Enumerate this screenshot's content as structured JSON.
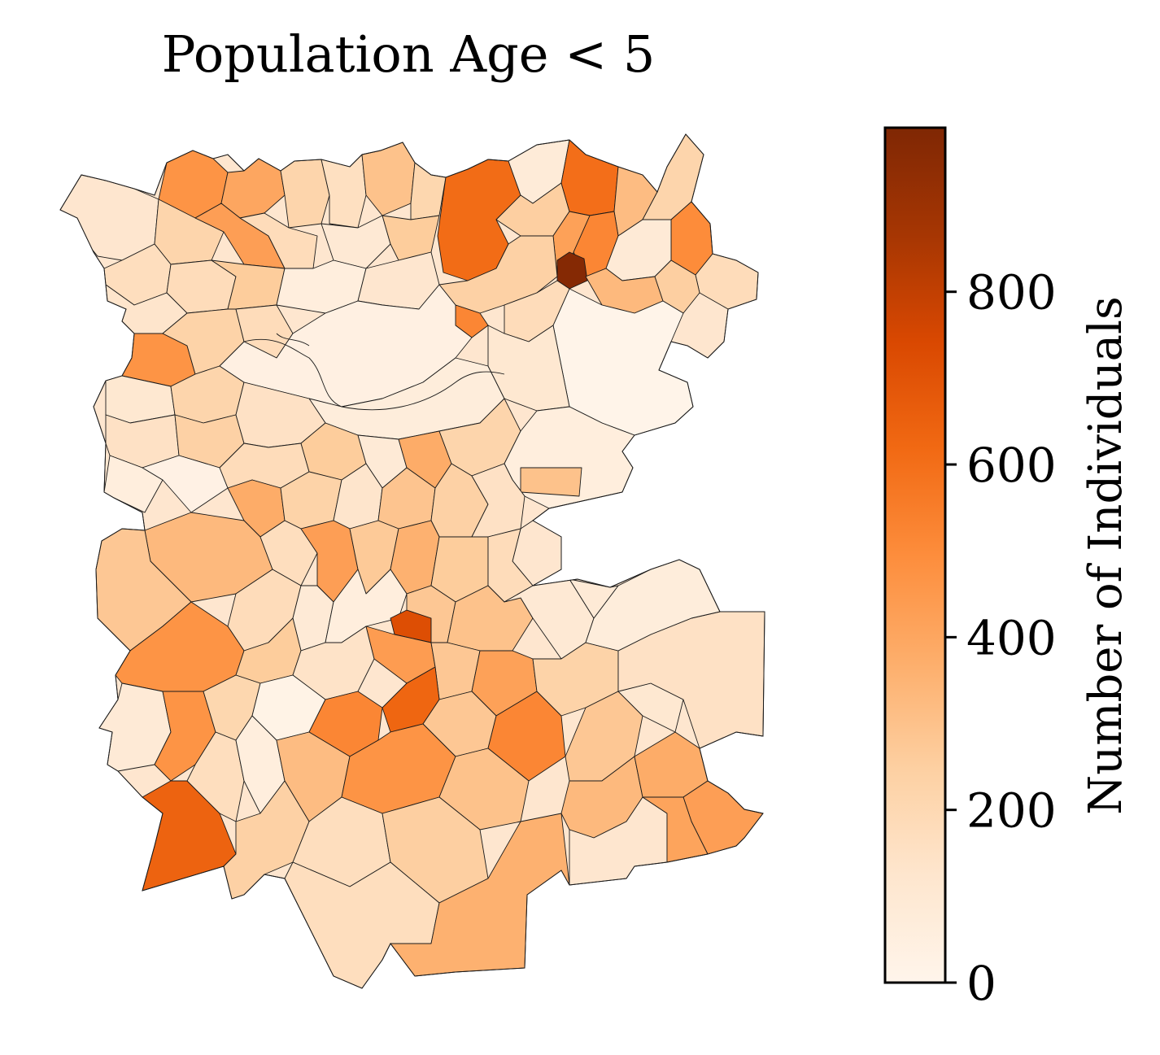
{
  "title": "Population Age < 5",
  "colorbar": {
    "label": "Number of Individuals",
    "min": 0,
    "max": 990,
    "ticks": [
      0,
      200,
      400,
      600,
      800
    ],
    "tick_labels": [
      "0",
      "200",
      "400",
      "600",
      "800"
    ],
    "colormap": "Oranges",
    "stops": [
      "#fff5eb",
      "#fee6ce",
      "#fdd0a2",
      "#fdae6b",
      "#fd8d3c",
      "#f16913",
      "#d94801",
      "#a63603",
      "#7f2704"
    ]
  },
  "map_data": {
    "type": "choropleth",
    "variable": "Population Age < 5",
    "units": "Number of Individuals",
    "notable_regions": [
      {
        "description": "highest value, north-east area",
        "value": 970
      },
      {
        "description": "south-west area",
        "value": 640
      },
      {
        "description": "north, large area",
        "value": 610
      },
      {
        "description": "centre-south",
        "value": 720
      }
    ]
  }
}
